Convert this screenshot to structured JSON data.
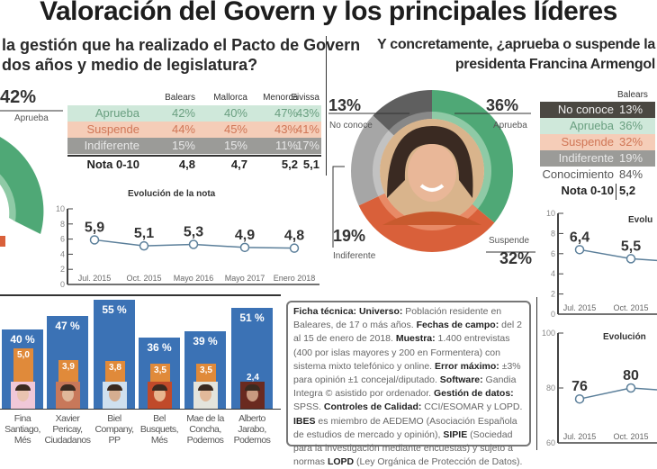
{
  "title": "Valoración del Govern y los principales líderes",
  "left": {
    "question": [
      "la gestión que ha realizado el Pacto de Govern",
      "dos años y medio de legislatura?"
    ],
    "donut_pct": "42%",
    "donut_label": "Aprueba",
    "table": {
      "headers": [
        "Balears",
        "Mallorca",
        "Menorca",
        "Eivissa"
      ],
      "rows": [
        {
          "label": "Aprueba",
          "values": [
            "42%",
            "40%",
            "47%",
            "43%"
          ],
          "color": "#cfe8da"
        },
        {
          "label": "Suspende",
          "values": [
            "44%",
            "45%",
            "43%",
            "41%"
          ],
          "color": "#f5cdb8"
        },
        {
          "label": "Indiferente",
          "values": [
            "15%",
            "15%",
            "11%",
            "17%"
          ],
          "color": "#9b9b98"
        }
      ],
      "nota_label": "Nota 0-10",
      "nota_values": [
        "4,8",
        "4,7",
        "5,2",
        "5,1"
      ]
    }
  },
  "right": {
    "question": [
      "Y concretamente, ¿aprueba o suspende la",
      "presidenta Francina Armengol"
    ],
    "donut_labels": {
      "no_conoce_pct": "13%",
      "no_conoce": "No conoce",
      "aprueba_pct": "36%",
      "aprueba": "Aprueba",
      "indiferente_pct": "19%",
      "indiferente": "Indiferente",
      "suspende_pct": "32%",
      "suspende": "Suspende"
    },
    "table": {
      "header": "Balears",
      "rows": [
        {
          "label": "No conoce",
          "value": "13%"
        },
        {
          "label": "Aprueba",
          "value": "36%"
        },
        {
          "label": "Suspende",
          "value": "32%"
        },
        {
          "label": "Indiferente",
          "value": "19%"
        },
        {
          "label": "Conocimiento",
          "value": "84%"
        },
        {
          "label": "Nota 0-10",
          "value": "5,2"
        }
      ]
    }
  },
  "ficha": [
    {
      "b": "Ficha técnica: Universo:",
      "t": " Población residente en Baleares, de 17 o más años. "
    },
    {
      "b": "Fechas de campo:",
      "t": " del 2 al 15 de enero de 2018. "
    },
    {
      "b": "Muestra:",
      "t": " 1.400 entrevistas (400 por islas mayores y 200 en Formentera) con sistema mixto telefónico y online. "
    },
    {
      "b": "Error máximo:",
      "t": " ±3% para opinión ±1 concejal/diputado. "
    },
    {
      "b": "Software:",
      "t": " Gandia Integra © asistido por ordenador. "
    },
    {
      "b": "Gestión de datos:",
      "t": " SPSS. "
    },
    {
      "b": "Controles de Calidad:",
      "t": " CCI/ESOMAR y LOPD. "
    },
    {
      "b": "IBES",
      "t": " es miembro de AEDEMO (Asociación Española de estudios de mercado y opinión), "
    },
    {
      "b": "SIPIE",
      "t": " (Sociedad para la investigación mediante encuestas) y sujeto a normas "
    },
    {
      "b": "LOPD",
      "t": " (Ley Orgánica de Protección de Datos)."
    }
  ],
  "colors": {
    "aprueba": "#4fa876",
    "suspende": "#d9603a",
    "indiferente": "#a6a6a6",
    "no_conoce": "#5f5f5f",
    "bar": "#3b72b5",
    "nota": "#e08a3a",
    "line": "#5b7f9a"
  },
  "chart_data": [
    {
      "type": "pie",
      "title": "",
      "values": [
        {
          "label": "Aprueba",
          "value": 42
        }
      ]
    },
    {
      "type": "line",
      "title": "Evolución de la nota",
      "ylim": [
        0,
        10
      ],
      "yticks": [
        0,
        2,
        4,
        6,
        8,
        10
      ],
      "categories": [
        "Jul. 2015",
        "Oct. 2015",
        "Mayo 2016",
        "Mayo 2017",
        "Enero 2018"
      ],
      "values": [
        5.9,
        5.1,
        5.3,
        4.9,
        4.8
      ],
      "labels": [
        "5,9",
        "5,1",
        "5,3",
        "4,9",
        "4,8"
      ]
    },
    {
      "type": "pie",
      "values": [
        {
          "label": "Aprueba",
          "value": 36
        },
        {
          "label": "Suspende",
          "value": 32
        },
        {
          "label": "Indiferente",
          "value": 19
        },
        {
          "label": "No conoce",
          "value": 13
        }
      ]
    },
    {
      "type": "line",
      "title": "Evolu",
      "ylim": [
        0,
        10
      ],
      "yticks": [
        0,
        2,
        4,
        6,
        8,
        10
      ],
      "categories": [
        "Jul. 2015",
        "Oct. 2015"
      ],
      "values": [
        6.4,
        5.5
      ],
      "labels": [
        "6,4",
        "5,5"
      ]
    },
    {
      "type": "line",
      "title": "Evolución",
      "ylim": [
        60,
        100
      ],
      "yticks": [
        60,
        80,
        100
      ],
      "categories": [
        "Jul. 2015",
        "Oct. 2015"
      ],
      "values": [
        76,
        80
      ],
      "labels": [
        "76",
        "80"
      ]
    },
    {
      "type": "bar",
      "categories": [
        "Fina Santiago, Més",
        "Xavier Pericay, Ciudadanos",
        "Biel Company, PP",
        "Bel Busquets, Més",
        "Mae de la Concha, Podemos",
        "Alberto Jarabo, Podemos"
      ],
      "series": [
        {
          "values": [
            40,
            47,
            55,
            36,
            39,
            51
          ],
          "labels": [
            "40 %",
            "47 %",
            "55 %",
            "36 %",
            "39 %",
            "51 %"
          ]
        },
        {
          "values": [
            5.0,
            3.9,
            3.8,
            3.5,
            3.5,
            2.4
          ],
          "labels": [
            "5,0",
            "3,9",
            "3,8",
            "3,5",
            "3,5",
            "2,4"
          ]
        }
      ],
      "names": [
        [
          "Fina",
          "Santiago,",
          "Més"
        ],
        [
          "Xavier",
          "Pericay,",
          "Ciudadanos"
        ],
        [
          "Biel",
          "Company,",
          "PP"
        ],
        [
          "Bel",
          "Busquets,",
          "Més"
        ],
        [
          "Mae de la",
          "Concha,",
          "Podemos"
        ],
        [
          "Alberto",
          "Jarabo,",
          "Podemos"
        ]
      ]
    }
  ]
}
